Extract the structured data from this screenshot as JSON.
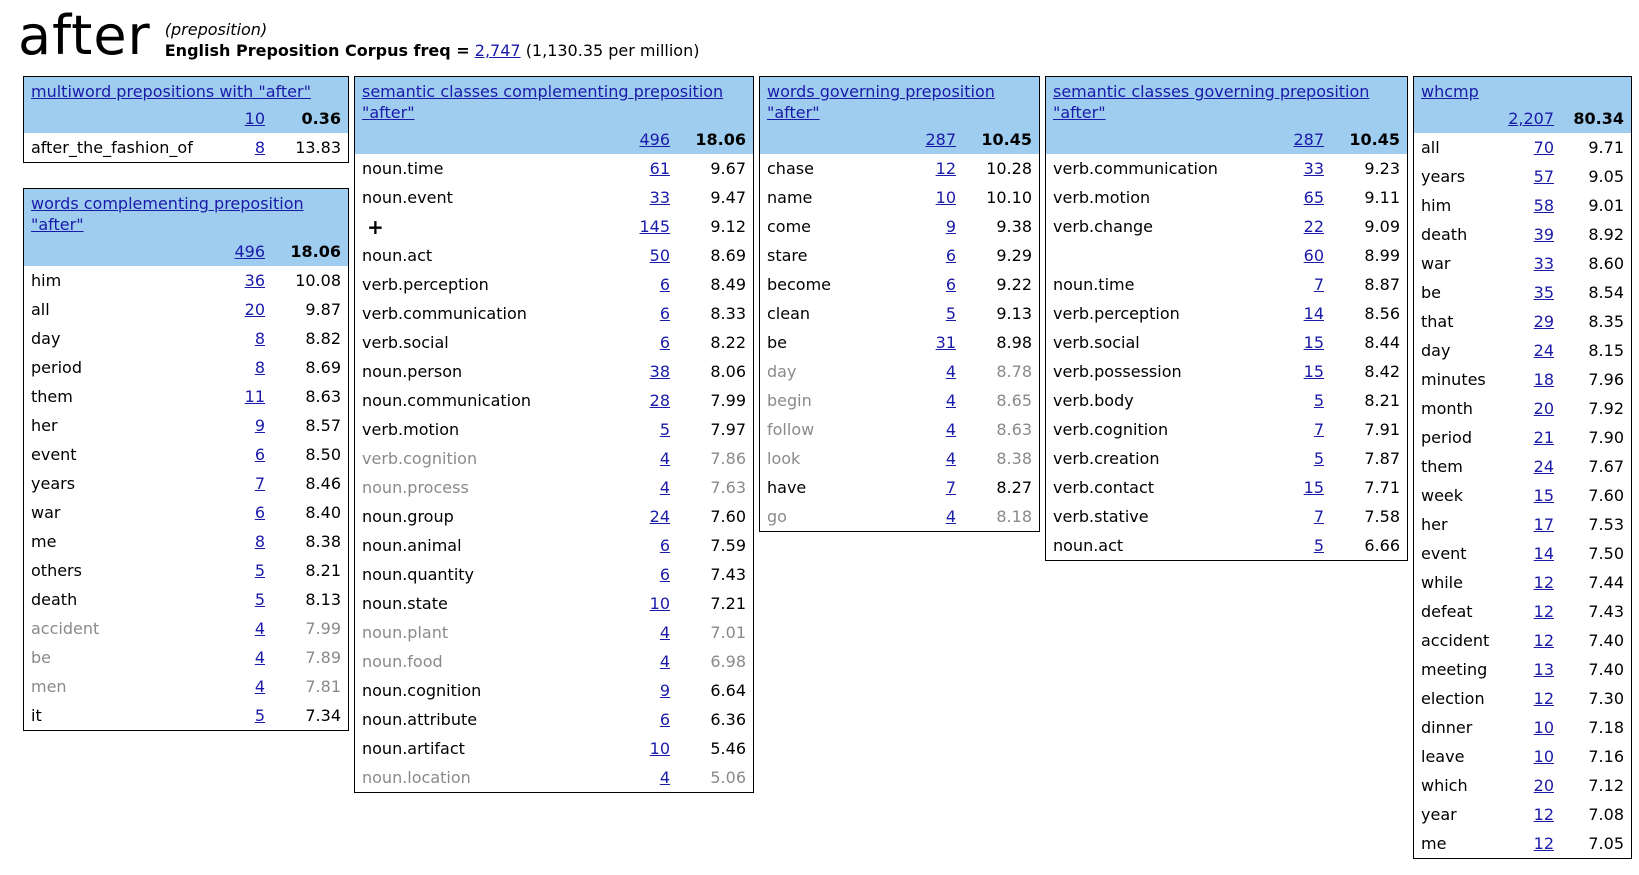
{
  "header": {
    "word": "after",
    "pos": "(preposition)",
    "corpus_label": "English Preposition Corpus freq =",
    "freq": "2,747",
    "per_million": "(1,130.35 per million)"
  },
  "colors": {
    "header_bg": "#9fcdf0",
    "link": "#1a1aa8",
    "gray_text": "#8a8a8a"
  },
  "tables": [
    {
      "id": "multiword",
      "title": "multiword prepositions with \"after\"",
      "total_freq": "10",
      "total_score": "0.36",
      "rows": [
        {
          "word": "after_the_fashion_of",
          "freq": "8",
          "score": "13.83"
        }
      ]
    },
    {
      "id": "words-complementing",
      "title": "words complementing preposition \"after\"",
      "total_freq": "496",
      "total_score": "18.06",
      "rows": [
        {
          "word": "him",
          "freq": "36",
          "score": "10.08"
        },
        {
          "word": "all",
          "freq": "20",
          "score": "9.87"
        },
        {
          "word": "day",
          "freq": "8",
          "score": "8.82"
        },
        {
          "word": "period",
          "freq": "8",
          "score": "8.69"
        },
        {
          "word": "them",
          "freq": "11",
          "score": "8.63"
        },
        {
          "word": "her",
          "freq": "9",
          "score": "8.57"
        },
        {
          "word": "event",
          "freq": "6",
          "score": "8.50"
        },
        {
          "word": "years",
          "freq": "7",
          "score": "8.46"
        },
        {
          "word": "war",
          "freq": "6",
          "score": "8.40"
        },
        {
          "word": "me",
          "freq": "8",
          "score": "8.38"
        },
        {
          "word": "others",
          "freq": "5",
          "score": "8.21"
        },
        {
          "word": "death",
          "freq": "5",
          "score": "8.13"
        },
        {
          "word": "accident",
          "freq": "4",
          "score": "7.99",
          "gray": true
        },
        {
          "word": "be",
          "freq": "4",
          "score": "7.89",
          "gray": true
        },
        {
          "word": "men",
          "freq": "4",
          "score": "7.81",
          "gray": true
        },
        {
          "word": "it",
          "freq": "5",
          "score": "7.34"
        }
      ]
    },
    {
      "id": "semantic-complementing",
      "title": "semantic classes complementing preposition \"after\"",
      "total_freq": "496",
      "total_score": "18.06",
      "rows": [
        {
          "word": "noun.time",
          "freq": "61",
          "score": "9.67"
        },
        {
          "word": "noun.event",
          "freq": "33",
          "score": "9.47"
        },
        {
          "word": "+",
          "freq": "145",
          "score": "9.12",
          "plus": true
        },
        {
          "word": "noun.act",
          "freq": "50",
          "score": "8.69"
        },
        {
          "word": "verb.perception",
          "freq": "6",
          "score": "8.49"
        },
        {
          "word": "verb.communication",
          "freq": "6",
          "score": "8.33"
        },
        {
          "word": "verb.social",
          "freq": "6",
          "score": "8.22"
        },
        {
          "word": "noun.person",
          "freq": "38",
          "score": "8.06"
        },
        {
          "word": "noun.communication",
          "freq": "28",
          "score": "7.99"
        },
        {
          "word": "verb.motion",
          "freq": "5",
          "score": "7.97"
        },
        {
          "word": "verb.cognition",
          "freq": "4",
          "score": "7.86",
          "gray": true
        },
        {
          "word": "noun.process",
          "freq": "4",
          "score": "7.63",
          "gray": true
        },
        {
          "word": "noun.group",
          "freq": "24",
          "score": "7.60"
        },
        {
          "word": "noun.animal",
          "freq": "6",
          "score": "7.59"
        },
        {
          "word": "noun.quantity",
          "freq": "6",
          "score": "7.43"
        },
        {
          "word": "noun.state",
          "freq": "10",
          "score": "7.21"
        },
        {
          "word": "noun.plant",
          "freq": "4",
          "score": "7.01",
          "gray": true
        },
        {
          "word": "noun.food",
          "freq": "4",
          "score": "6.98",
          "gray": true
        },
        {
          "word": "noun.cognition",
          "freq": "9",
          "score": "6.64"
        },
        {
          "word": "noun.attribute",
          "freq": "6",
          "score": "6.36"
        },
        {
          "word": "noun.artifact",
          "freq": "10",
          "score": "5.46"
        },
        {
          "word": "noun.location",
          "freq": "4",
          "score": "5.06",
          "gray": true
        }
      ]
    },
    {
      "id": "words-governing",
      "title": "words governing preposition \"after\"",
      "total_freq": "287",
      "total_score": "10.45",
      "rows": [
        {
          "word": "chase",
          "freq": "12",
          "score": "10.28"
        },
        {
          "word": "name",
          "freq": "10",
          "score": "10.10"
        },
        {
          "word": "come",
          "freq": "9",
          "score": "9.38"
        },
        {
          "word": "stare",
          "freq": "6",
          "score": "9.29"
        },
        {
          "word": "become",
          "freq": "6",
          "score": "9.22"
        },
        {
          "word": "clean",
          "freq": "5",
          "score": "9.13"
        },
        {
          "word": "be",
          "freq": "31",
          "score": "8.98"
        },
        {
          "word": "day",
          "freq": "4",
          "score": "8.78",
          "gray": true
        },
        {
          "word": "begin",
          "freq": "4",
          "score": "8.65",
          "gray": true
        },
        {
          "word": "follow",
          "freq": "4",
          "score": "8.63",
          "gray": true
        },
        {
          "word": "look",
          "freq": "4",
          "score": "8.38",
          "gray": true
        },
        {
          "word": "have",
          "freq": "7",
          "score": "8.27"
        },
        {
          "word": "go",
          "freq": "4",
          "score": "8.18",
          "gray": true
        }
      ]
    },
    {
      "id": "semantic-governing",
      "title": "semantic classes governing preposition \"after\"",
      "total_freq": "287",
      "total_score": "10.45",
      "rows": [
        {
          "word": "verb.communication",
          "freq": "33",
          "score": "9.23"
        },
        {
          "word": "verb.motion",
          "freq": "65",
          "score": "9.11"
        },
        {
          "word": "verb.change",
          "freq": "22",
          "score": "9.09"
        },
        {
          "word": "",
          "freq": "60",
          "score": "8.99"
        },
        {
          "word": "noun.time",
          "freq": "7",
          "score": "8.87"
        },
        {
          "word": "verb.perception",
          "freq": "14",
          "score": "8.56"
        },
        {
          "word": "verb.social",
          "freq": "15",
          "score": "8.44"
        },
        {
          "word": "verb.possession",
          "freq": "15",
          "score": "8.42"
        },
        {
          "word": "verb.body",
          "freq": "5",
          "score": "8.21"
        },
        {
          "word": "verb.cognition",
          "freq": "7",
          "score": "7.91"
        },
        {
          "word": "verb.creation",
          "freq": "5",
          "score": "7.87"
        },
        {
          "word": "verb.contact",
          "freq": "15",
          "score": "7.71"
        },
        {
          "word": "verb.stative",
          "freq": "7",
          "score": "7.58"
        },
        {
          "word": "noun.act",
          "freq": "5",
          "score": "6.66"
        }
      ]
    },
    {
      "id": "whcmp",
      "title": "whcmp",
      "total_freq": "2,207",
      "total_score": "80.34",
      "rows": [
        {
          "word": "all",
          "freq": "70",
          "score": "9.71"
        },
        {
          "word": "years",
          "freq": "57",
          "score": "9.05"
        },
        {
          "word": "him",
          "freq": "58",
          "score": "9.01"
        },
        {
          "word": "death",
          "freq": "39",
          "score": "8.92"
        },
        {
          "word": "war",
          "freq": "33",
          "score": "8.60"
        },
        {
          "word": "be",
          "freq": "35",
          "score": "8.54"
        },
        {
          "word": "that",
          "freq": "29",
          "score": "8.35"
        },
        {
          "word": "day",
          "freq": "24",
          "score": "8.15"
        },
        {
          "word": "minutes",
          "freq": "18",
          "score": "7.96"
        },
        {
          "word": "month",
          "freq": "20",
          "score": "7.92"
        },
        {
          "word": "period",
          "freq": "21",
          "score": "7.90"
        },
        {
          "word": "them",
          "freq": "24",
          "score": "7.67"
        },
        {
          "word": "week",
          "freq": "15",
          "score": "7.60"
        },
        {
          "word": "her",
          "freq": "17",
          "score": "7.53"
        },
        {
          "word": "event",
          "freq": "14",
          "score": "7.50"
        },
        {
          "word": "while",
          "freq": "12",
          "score": "7.44"
        },
        {
          "word": "defeat",
          "freq": "12",
          "score": "7.43"
        },
        {
          "word": "accident",
          "freq": "12",
          "score": "7.40"
        },
        {
          "word": "meeting",
          "freq": "13",
          "score": "7.40"
        },
        {
          "word": "election",
          "freq": "12",
          "score": "7.30"
        },
        {
          "word": "dinner",
          "freq": "10",
          "score": "7.18"
        },
        {
          "word": "leave",
          "freq": "10",
          "score": "7.16"
        },
        {
          "word": "which",
          "freq": "20",
          "score": "7.12"
        },
        {
          "word": "year",
          "freq": "12",
          "score": "7.08"
        },
        {
          "word": "me",
          "freq": "12",
          "score": "7.05"
        }
      ]
    }
  ]
}
